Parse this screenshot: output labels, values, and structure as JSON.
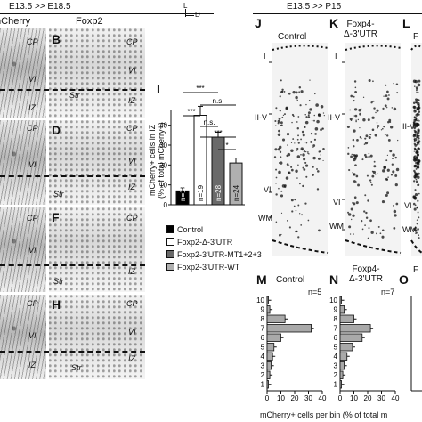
{
  "header_left": "E13.5 >> E18.5",
  "header_right": "E13.5 >> P15",
  "orient_L": "L",
  "orient_D": "D",
  "col_left_title": "mCherry",
  "col_mid_title": "Foxp2",
  "panel_B": "B",
  "panel_D": "D",
  "panel_F": "F",
  "panel_H": "H",
  "panel_I": "I",
  "panel_J": "J",
  "panel_K": "K",
  "panel_L": "L",
  "panel_M": "M",
  "panel_N": "N",
  "panel_O": "O",
  "layer_CP": "CP",
  "layer_VI": "VI",
  "layer_IZ": "IZ",
  "layer_Str": "Str",
  "J_title": "Control",
  "K_title": "Foxp4-\nΔ-3'UTR",
  "L_title": "F",
  "cortex_I": "I",
  "cortex_IIV": "II-V",
  "cortex_VI": "VI",
  "cortex_WM": "WM",
  "cortex_IIV_L": "II-V",
  "chart_data": {
    "type": "bar",
    "panel": "I",
    "ylabel": "mCherry+ cells in IZ\n(% of total mCherry+)",
    "yticks": [
      0,
      10,
      20,
      30,
      40
    ],
    "ylim": [
      0,
      60
    ],
    "series": [
      {
        "name": "Control",
        "value": 7,
        "error": 1.5,
        "n": "n=13",
        "color": "#000000"
      },
      {
        "name": "Foxp2-Δ-3'UTR",
        "value": 45,
        "error": 4.5,
        "n": "n=19",
        "color": "#ffffff"
      },
      {
        "name": "Foxp2-3'UTR-MT1+2+3",
        "value": 34,
        "error": 2.5,
        "n": "n=28",
        "color": "#6a6a6a"
      },
      {
        "name": "Foxp2-3'UTR-WT",
        "value": 21,
        "error": 2.5,
        "n": "n=24",
        "color": "#b0b0b0"
      }
    ],
    "significance": [
      "***",
      "n.s.",
      "***",
      "n.s.",
      "***",
      "*"
    ]
  },
  "hist_M": {
    "title": "Control",
    "n": "n=5",
    "bins": [
      10,
      9,
      8,
      7,
      6,
      5,
      4,
      3,
      2,
      1
    ],
    "values": [
      1,
      2,
      13,
      32,
      10,
      5,
      4,
      3,
      2,
      1
    ],
    "xticks": [
      0,
      10,
      20,
      30,
      40
    ]
  },
  "hist_N": {
    "title": "Foxp4-\nΔ-3'UTR",
    "n": "n=7",
    "bins": [
      10,
      9,
      8,
      7,
      6,
      5,
      4,
      3,
      2,
      1
    ],
    "values": [
      1,
      3,
      10,
      22,
      16,
      9,
      5,
      3,
      2,
      1
    ],
    "xticks": [
      0,
      10,
      20,
      30,
      40
    ]
  },
  "hist_O_label": "F",
  "x_axis_label": "mCherry+ cells per bin (% of total m"
}
